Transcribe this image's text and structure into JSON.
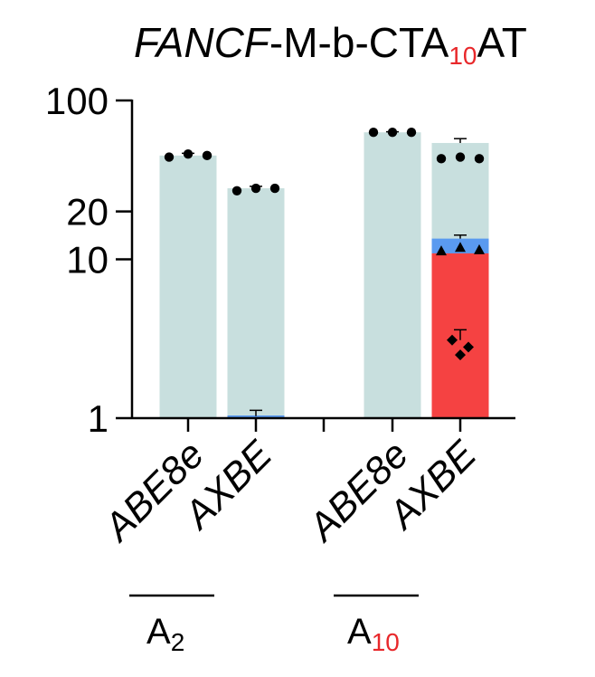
{
  "chart_data": {
    "type": "bar",
    "title_parts": {
      "gene": "FANCF",
      "middle": "-M-b-CTA",
      "subscript": "10",
      "end": "AT"
    },
    "y_scale": "log",
    "ylim": [
      1,
      100
    ],
    "y_ticks": [
      "1",
      "10",
      "20",
      "100"
    ],
    "categories": [
      "ABE8e",
      "AXBE",
      "ABE8e",
      "AXBE"
    ],
    "groups": [
      {
        "base": "A",
        "subscript": "2",
        "members": [
          0,
          1
        ]
      },
      {
        "base": "A",
        "subscript": "10",
        "members": [
          2,
          3
        ]
      }
    ],
    "colors": {
      "total": "#c8dfde",
      "blue": "#5a9af0",
      "red": "#f54242",
      "accent_red": "#e8282b"
    },
    "bars": [
      {
        "total": 45,
        "blue": 0,
        "red": 0,
        "error": 1.5,
        "points": [
          44,
          46,
          45
        ]
      },
      {
        "total": 28,
        "blue": 1.03,
        "red": 0,
        "error": 0.8,
        "blue_error": 0.09,
        "points": [
          27,
          28,
          28
        ]
      },
      {
        "total": 63,
        "blue": 0,
        "red": 0,
        "error": 0.5,
        "points": [
          63,
          63,
          63
        ]
      },
      {
        "total": 54,
        "blue": 13.5,
        "red": 10.9,
        "error": 3.5,
        "blue_error": 0.7,
        "points": [
          43,
          44,
          43
        ],
        "triangle_points": [
          11.3,
          11.9,
          11.5
        ],
        "diamond_points": [
          3.1,
          2.5,
          2.8
        ],
        "diamond_error": 0.5
      }
    ]
  }
}
